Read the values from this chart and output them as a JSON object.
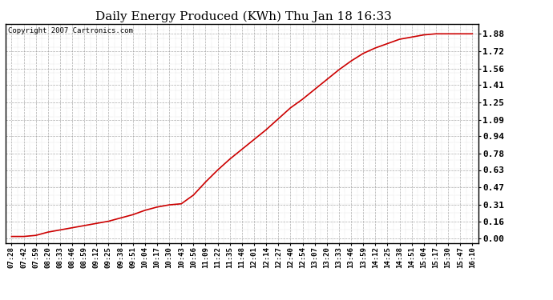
{
  "title": "Daily Energy Produced (KWh) Thu Jan 18 16:33",
  "copyright_text": "Copyright 2007 Cartronics.com",
  "line_color": "#cc0000",
  "background_color": "#ffffff",
  "plot_bg_color": "#ffffff",
  "grid_color": "#999999",
  "yticks": [
    0.0,
    0.16,
    0.31,
    0.47,
    0.63,
    0.78,
    0.94,
    1.09,
    1.25,
    1.41,
    1.56,
    1.72,
    1.88
  ],
  "ymax": 1.97,
  "ymin": -0.04,
  "xtick_labels": [
    "07:28",
    "07:42",
    "07:59",
    "08:20",
    "08:33",
    "08:46",
    "08:59",
    "09:12",
    "09:25",
    "09:38",
    "09:51",
    "10:04",
    "10:17",
    "10:30",
    "10:43",
    "10:56",
    "11:09",
    "11:22",
    "11:35",
    "11:48",
    "12:01",
    "12:14",
    "12:27",
    "12:40",
    "12:54",
    "13:07",
    "13:20",
    "13:33",
    "13:46",
    "13:59",
    "14:12",
    "14:25",
    "14:38",
    "14:51",
    "15:04",
    "15:17",
    "15:30",
    "15:47",
    "16:10"
  ],
  "data_x_indices": [
    0,
    1,
    2,
    3,
    4,
    5,
    6,
    7,
    8,
    9,
    10,
    11,
    12,
    13,
    14,
    15,
    16,
    17,
    18,
    19,
    20,
    21,
    22,
    23,
    24,
    25,
    26,
    27,
    28,
    29,
    30,
    31,
    32,
    33,
    34,
    35,
    36,
    37,
    38
  ],
  "data_y": [
    0.02,
    0.02,
    0.03,
    0.06,
    0.08,
    0.1,
    0.12,
    0.14,
    0.16,
    0.19,
    0.22,
    0.26,
    0.29,
    0.31,
    0.32,
    0.4,
    0.52,
    0.63,
    0.73,
    0.82,
    0.91,
    1.0,
    1.1,
    1.2,
    1.28,
    1.37,
    1.46,
    1.55,
    1.63,
    1.7,
    1.75,
    1.79,
    1.83,
    1.85,
    1.87,
    1.88,
    1.88,
    1.88,
    1.88
  ]
}
